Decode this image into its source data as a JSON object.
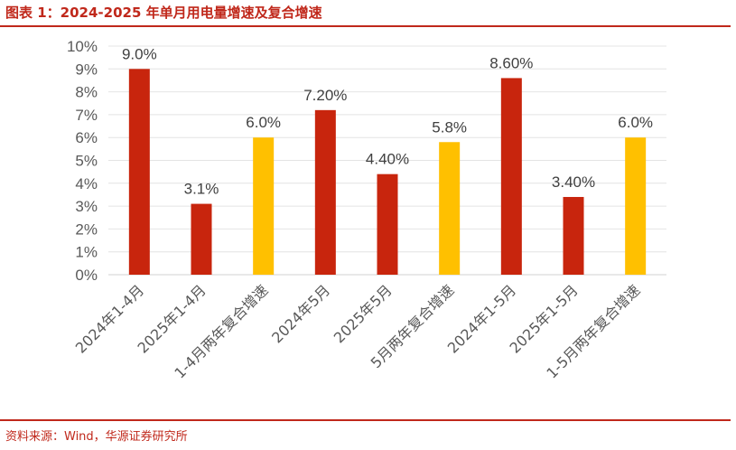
{
  "header": {
    "title": "图表 1：2024-2025 年单月用电量增速及复合增速"
  },
  "footer": {
    "source": "资料来源：Wind，华源证券研究所"
  },
  "chart_data": {
    "type": "bar",
    "title": "图表 1：2024-2025 年单月用电量增速及复合增速",
    "xlabel": "",
    "ylabel": "",
    "ylim": [
      0,
      10
    ],
    "y_tick_values": [
      0,
      1,
      2,
      3,
      4,
      5,
      6,
      7,
      8,
      9,
      10
    ],
    "y_tick_labels": [
      "0%",
      "1%",
      "2%",
      "3%",
      "4%",
      "5%",
      "6%",
      "7%",
      "8%",
      "9%",
      "10%"
    ],
    "categories": [
      "2024年1-4月",
      "2025年1-4月",
      "1-4月两年复合增速",
      "2024年5月",
      "2025年5月",
      "5月两年复合增速",
      "2024年1-5月",
      "2025年1-5月",
      "1-5月两年复合增速"
    ],
    "values": [
      9.0,
      3.1,
      6.0,
      7.2,
      4.4,
      5.8,
      8.6,
      3.4,
      6.0
    ],
    "data_labels": [
      "9.0%",
      "3.1%",
      "6.0%",
      "7.20%",
      "4.40%",
      "5.8%",
      "8.60%",
      "3.40%",
      "6.0%"
    ],
    "bar_colors": [
      "#c8250d",
      "#c8250d",
      "#ffc000",
      "#c8250d",
      "#c8250d",
      "#ffc000",
      "#c8250d",
      "#c8250d",
      "#ffc000"
    ],
    "grid": true,
    "legend": "none"
  }
}
